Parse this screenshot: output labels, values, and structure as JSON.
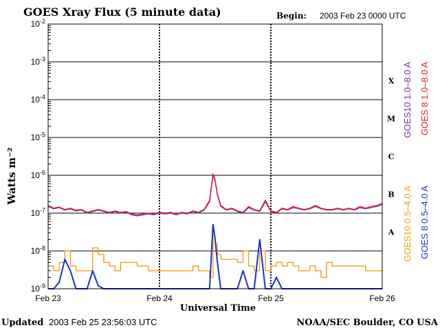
{
  "header": {
    "title": "GOES Xray Flux (5 minute data)",
    "begin_label": "Begin:",
    "begin_value": "2003 Feb 23 0000 UTC"
  },
  "footer": {
    "updated_label": "Updated",
    "updated_value": "2003 Feb 25 23:56:03 UTC",
    "credit": "NOAA/SEC Boulder, CO USA"
  },
  "colors": {
    "goes10_long": "#7b2fbf",
    "goes8_long": "#e0202a",
    "goes10_short": "#f2a00c",
    "goes8_short": "#1a2fd6",
    "grid": "#000000"
  },
  "chart_data": {
    "type": "line",
    "title": "GOES Xray Flux (5 minute data)",
    "xlabel": "Universal Time",
    "ylabel": "Watts m⁻²",
    "y_scale": "log",
    "ylim": [
      1e-09,
      0.01
    ],
    "xlim": [
      "2003-02-23",
      "2003-02-26"
    ],
    "x_ticks": [
      "Feb 23",
      "Feb 24",
      "Feb 25",
      "Feb 26"
    ],
    "y_ticks": [
      {
        "base": "10",
        "exp": "-2"
      },
      {
        "base": "10",
        "exp": "-3"
      },
      {
        "base": "10",
        "exp": "-4"
      },
      {
        "base": "10",
        "exp": "-5"
      },
      {
        "base": "10",
        "exp": "-6"
      },
      {
        "base": "10",
        "exp": "-7"
      },
      {
        "base": "10",
        "exp": "-8"
      },
      {
        "base": "10",
        "exp": "-9"
      }
    ],
    "flare_classes": [
      "X",
      "M",
      "C",
      "B",
      "A"
    ],
    "legend": [
      {
        "name": "GOES10 1.0–8.0 A",
        "color": "#7b2fbf"
      },
      {
        "name": "GOES 8 1.0–8.0 A",
        "color": "#e0202a"
      },
      {
        "name": "GOES10 0.5–4.0 A",
        "color": "#f2a00c"
      },
      {
        "name": "GOES 8 0.5–4.0 A",
        "color": "#1a2fd6"
      }
    ],
    "series": [
      {
        "name": "GOES10 1.0–8.0 A",
        "x": [
          0.0,
          0.05,
          0.1,
          0.15,
          0.2,
          0.25,
          0.3,
          0.35,
          0.4,
          0.45,
          0.5,
          0.55,
          0.6,
          0.65,
          0.7,
          0.75,
          0.8,
          0.85,
          0.9,
          0.95,
          1.0,
          1.05,
          1.1,
          1.15,
          1.2,
          1.25,
          1.3,
          1.35,
          1.4,
          1.45,
          1.48,
          1.5,
          1.52,
          1.55,
          1.6,
          1.65,
          1.7,
          1.75,
          1.8,
          1.85,
          1.9,
          1.95,
          2.0,
          2.05,
          2.1,
          2.15,
          2.2,
          2.25,
          2.3,
          2.35,
          2.4,
          2.45,
          2.5,
          2.55,
          2.6,
          2.65,
          2.7,
          2.75,
          2.8,
          2.85,
          2.9,
          2.95,
          3.0
        ],
        "y": [
          1.5e-07,
          1.3e-07,
          1.4e-07,
          1.2e-07,
          1.3e-07,
          1.15e-07,
          1.2e-07,
          1e-07,
          1.1e-07,
          1.2e-07,
          1.1e-07,
          1e-07,
          1.1e-07,
          1e-07,
          1.05e-07,
          9e-08,
          8.5e-08,
          9e-08,
          9.5e-08,
          9e-08,
          1e-07,
          9.5e-08,
          1e-07,
          9e-08,
          1e-07,
          9.5e-08,
          1.1e-07,
          1e-07,
          1.2e-07,
          2e-07,
          1e-06,
          7e-07,
          3e-07,
          1.5e-07,
          1.2e-07,
          1.3e-07,
          1.1e-07,
          1e-07,
          1.4e-07,
          1.2e-07,
          1.1e-07,
          2e-07,
          1.1e-07,
          1e-07,
          1.3e-07,
          1.2e-07,
          1.4e-07,
          1.3e-07,
          1.2e-07,
          1.3e-07,
          1.5e-07,
          1.3e-07,
          1.2e-07,
          1.2e-07,
          1.3e-07,
          1.2e-07,
          1.3e-07,
          1.2e-07,
          1.4e-07,
          1.3e-07,
          1.4e-07,
          1.5e-07,
          1.7e-07
        ]
      },
      {
        "name": "GOES 8 1.0–8.0 A",
        "x": [
          0.0,
          0.05,
          0.1,
          0.15,
          0.2,
          0.25,
          0.3,
          0.35,
          0.4,
          0.45,
          0.5,
          0.55,
          0.6,
          0.65,
          0.7,
          0.75,
          0.8,
          0.85,
          0.9,
          0.95,
          1.0,
          1.05,
          1.1,
          1.15,
          1.2,
          1.25,
          1.3,
          1.35,
          1.4,
          1.45,
          1.48,
          1.5,
          1.52,
          1.55,
          1.6,
          1.65,
          1.7,
          1.75,
          1.8,
          1.85,
          1.9,
          1.95,
          2.0,
          2.05,
          2.1,
          2.15,
          2.2,
          2.25,
          2.3,
          2.35,
          2.4,
          2.45,
          2.5,
          2.55,
          2.6,
          2.65,
          2.7,
          2.75,
          2.8,
          2.85,
          2.9,
          2.95,
          3.0
        ],
        "y": [
          1.6e-07,
          1.35e-07,
          1.45e-07,
          1.25e-07,
          1.35e-07,
          1.2e-07,
          1.25e-07,
          1.05e-07,
          1.15e-07,
          1.25e-07,
          1.15e-07,
          1.05e-07,
          1.15e-07,
          1.05e-07,
          1.1e-07,
          9.5e-08,
          9e-08,
          9.5e-08,
          1e-07,
          9.5e-08,
          1.05e-07,
          1e-07,
          1.05e-07,
          9.5e-08,
          1.05e-07,
          1e-07,
          1.15e-07,
          1.05e-07,
          1.25e-07,
          2.2e-07,
          1.1e-06,
          7.5e-07,
          3.2e-07,
          1.6e-07,
          1.25e-07,
          1.35e-07,
          1.15e-07,
          1.05e-07,
          1.5e-07,
          1.25e-07,
          1.15e-07,
          2.2e-07,
          1.15e-07,
          1.05e-07,
          1.35e-07,
          1.25e-07,
          1.5e-07,
          1.35e-07,
          1.25e-07,
          1.35e-07,
          1.6e-07,
          1.35e-07,
          1.25e-07,
          1.25e-07,
          1.35e-07,
          1.25e-07,
          1.35e-07,
          1.25e-07,
          1.5e-07,
          1.35e-07,
          1.5e-07,
          1.6e-07,
          1.8e-07
        ]
      },
      {
        "name": "GOES10 0.5–4.0 A",
        "x": [
          0.0,
          0.05,
          0.1,
          0.15,
          0.2,
          0.25,
          0.3,
          0.35,
          0.4,
          0.45,
          0.5,
          0.55,
          0.6,
          0.65,
          0.7,
          0.75,
          0.8,
          0.85,
          0.9,
          0.95,
          1.0,
          1.05,
          1.1,
          1.15,
          1.2,
          1.25,
          1.3,
          1.35,
          1.4,
          1.45,
          1.48,
          1.5,
          1.52,
          1.55,
          1.6,
          1.65,
          1.7,
          1.75,
          1.8,
          1.85,
          1.9,
          1.95,
          2.0,
          2.05,
          2.1,
          2.15,
          2.2,
          2.25,
          2.3,
          2.35,
          2.4,
          2.45,
          2.5,
          2.55,
          2.6,
          2.65,
          2.7,
          2.75,
          2.8,
          2.85,
          2.9,
          2.95,
          3.0
        ],
        "y": [
          4e-09,
          3e-09,
          5e-09,
          1e-08,
          4e-09,
          3e-09,
          3e-09,
          3e-09,
          1.2e-08,
          8e-09,
          5e-09,
          4e-09,
          3e-09,
          5e-09,
          5e-09,
          5e-09,
          4e-09,
          4e-09,
          3e-09,
          3e-09,
          3e-09,
          3e-09,
          3e-09,
          3e-09,
          3e-09,
          3e-09,
          4e-09,
          3e-09,
          3e-09,
          2e-09,
          2.5e-08,
          1.5e-08,
          8e-09,
          6e-09,
          6e-09,
          6e-09,
          5e-09,
          1e-08,
          4e-09,
          3e-09,
          1e-08,
          3e-09,
          4e-09,
          5e-09,
          4e-09,
          5e-09,
          4e-09,
          3e-09,
          3e-09,
          4e-09,
          3e-09,
          2e-09,
          5e-09,
          4e-09,
          4e-09,
          4e-09,
          4e-09,
          4e-09,
          4e-09,
          3e-09,
          3e-09,
          3e-09,
          3e-09
        ]
      },
      {
        "name": "GOES 8 0.5–4.0 A",
        "x": [
          0.0,
          0.05,
          0.1,
          0.15,
          0.2,
          0.25,
          0.3,
          0.35,
          0.4,
          0.45,
          0.5,
          0.55,
          0.6,
          0.65,
          0.7,
          0.75,
          0.8,
          0.85,
          0.9,
          0.95,
          1.0,
          1.05,
          1.1,
          1.15,
          1.2,
          1.25,
          1.3,
          1.35,
          1.4,
          1.45,
          1.48,
          1.5,
          1.52,
          1.55,
          1.6,
          1.65,
          1.7,
          1.75,
          1.8,
          1.85,
          1.9,
          1.95,
          2.0,
          2.05,
          2.1,
          2.15,
          2.2,
          2.25,
          2.3,
          2.35,
          2.4,
          2.45,
          2.5,
          2.55,
          2.6,
          2.65,
          2.7,
          2.75,
          2.8,
          2.85,
          2.9,
          2.95,
          3.0
        ],
        "y": [
          1e-09,
          1e-09,
          1.5e-09,
          6e-09,
          3e-09,
          1e-09,
          1e-09,
          1e-09,
          3e-09,
          1.2e-09,
          1e-09,
          1e-09,
          1e-09,
          1e-09,
          1e-09,
          1e-09,
          1e-09,
          1e-09,
          1e-09,
          1e-09,
          1e-09,
          1e-09,
          1e-09,
          1e-09,
          1e-09,
          1e-09,
          1e-09,
          1e-09,
          1e-09,
          1e-09,
          5e-08,
          2e-08,
          5e-09,
          1e-09,
          1e-09,
          1e-09,
          1e-09,
          3e-09,
          1e-09,
          1e-09,
          2e-08,
          1e-09,
          1e-09,
          2e-09,
          1e-09,
          1e-09,
          1e-09,
          1e-09,
          1e-09,
          1e-09,
          1e-09,
          1e-09,
          1e-09,
          1e-09,
          1e-09,
          1e-09,
          1e-09,
          1e-09,
          1e-09,
          1e-09,
          1e-09,
          1e-09,
          1e-09
        ]
      }
    ]
  }
}
